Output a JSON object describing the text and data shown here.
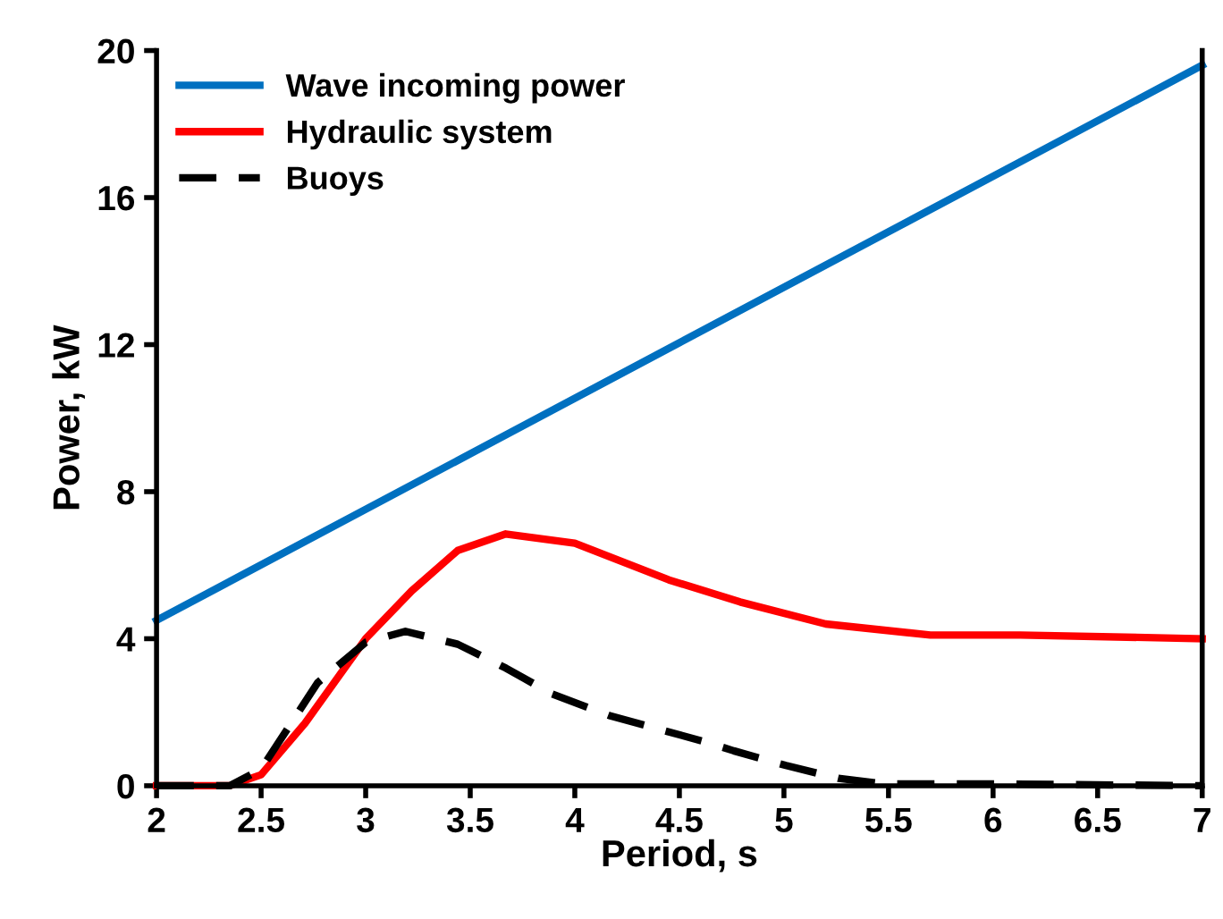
{
  "chart_data": {
    "type": "line",
    "xlabel": "Period, s",
    "ylabel": "Power, kW",
    "xlim": [
      2,
      7
    ],
    "xticks": [
      2,
      2.5,
      3,
      3.5,
      4,
      4.5,
      5,
      5.5,
      6,
      6.5,
      7
    ],
    "ylim": [
      0,
      20
    ],
    "yticks": [
      0,
      4,
      8,
      12,
      16,
      20
    ],
    "grid": false,
    "legend": "top left",
    "marker": "none",
    "series": [
      {
        "name": "Wave incoming power",
        "color": "#0070c0",
        "line_style": "solid",
        "x": [
          2,
          7
        ],
        "values": [
          4.5,
          19.6
        ]
      },
      {
        "name": "Hydraulic system",
        "color": "#ff0000",
        "line_style": "solid",
        "x": [
          2,
          2.35,
          2.5,
          2.71,
          3.0,
          3.22,
          3.44,
          3.67,
          4.0,
          4.45,
          4.79,
          5.2,
          5.7,
          6.13,
          7
        ],
        "values": [
          0,
          0,
          0.3,
          1.7,
          4.0,
          5.3,
          6.4,
          6.85,
          6.6,
          5.6,
          5.0,
          4.4,
          4.1,
          4.1,
          4.0
        ]
      },
      {
        "name": "Buoys",
        "color": "#000000",
        "line_style": "dashed",
        "x": [
          2,
          2.35,
          2.5,
          2.77,
          3.0,
          3.19,
          3.44,
          3.67,
          3.89,
          4.17,
          4.62,
          4.76,
          5.01,
          5.26,
          5.48,
          6,
          7
        ],
        "values": [
          0,
          0,
          0.45,
          2.8,
          3.9,
          4.2,
          3.85,
          3.2,
          2.5,
          1.9,
          1.2,
          0.95,
          0.55,
          0.2,
          0.05,
          0.05,
          0
        ]
      }
    ]
  }
}
